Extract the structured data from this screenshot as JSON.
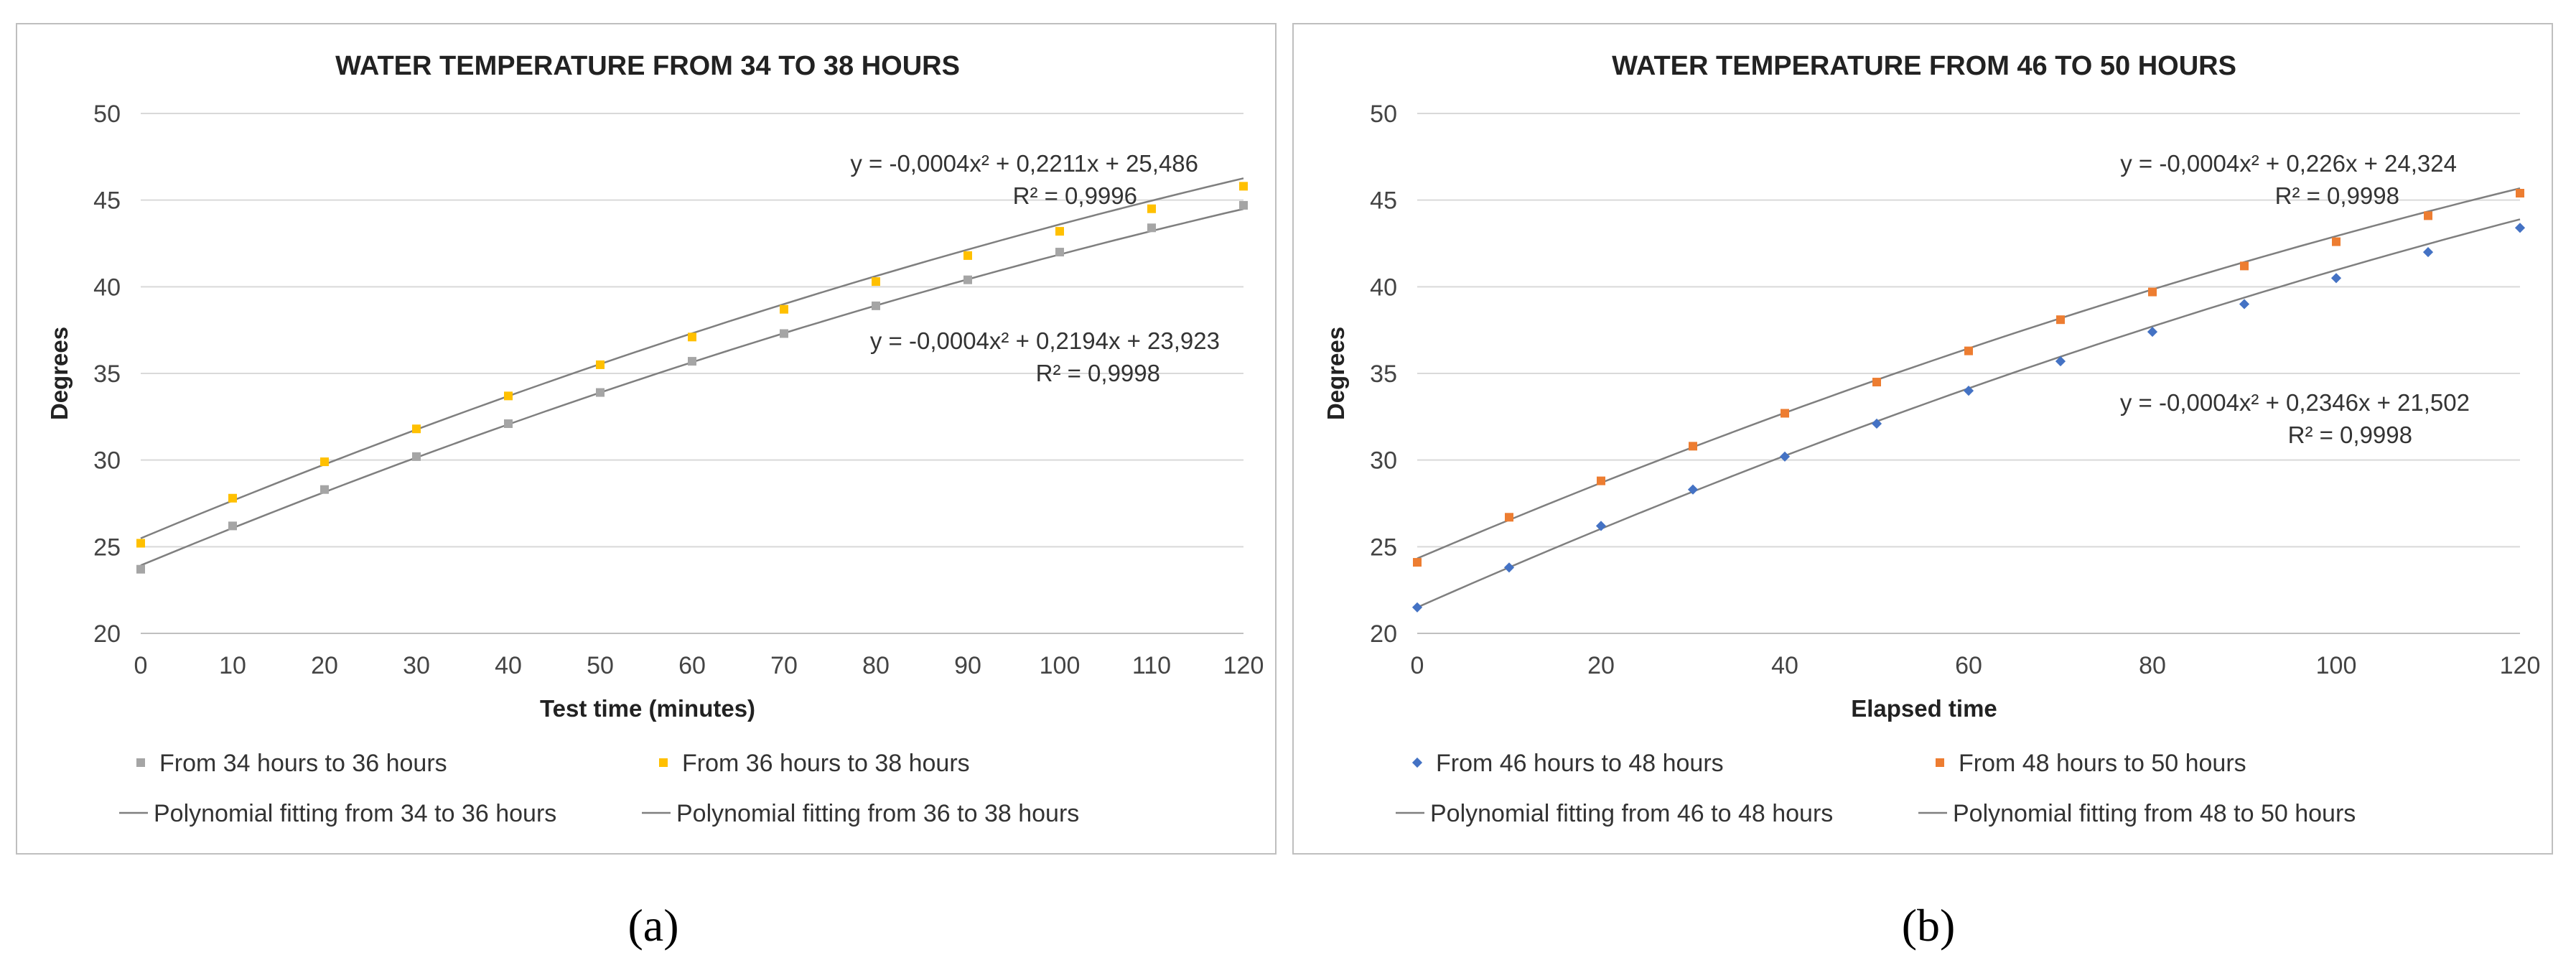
{
  "chart_data": [
    {
      "type": "scatter",
      "title": "WATER TEMPERATURE FROM 34 TO 38 HOURS",
      "xlabel": "Test time (minutes)",
      "ylabel": "Degrees",
      "xlim": [
        0,
        120
      ],
      "ylim": [
        20,
        50
      ],
      "xticks": [
        0,
        10,
        20,
        30,
        40,
        50,
        60,
        70,
        80,
        90,
        100,
        110,
        120
      ],
      "yticks": [
        20,
        25,
        30,
        35,
        40,
        45,
        50
      ],
      "grid": "horizontal",
      "legend_position": "bottom",
      "x": [
        0,
        10,
        20,
        30,
        40,
        50,
        60,
        70,
        80,
        90,
        100,
        110,
        120
      ],
      "series": [
        {
          "name": "From 34 hours to 36 hours",
          "color": "#a5a5a5",
          "marker": "square",
          "values": [
            23.7,
            26.2,
            28.3,
            30.2,
            32.1,
            33.9,
            35.7,
            37.3,
            38.9,
            40.4,
            42.0,
            43.4,
            44.7
          ]
        },
        {
          "name": "From 36 hours to 38 hours",
          "color": "#ffc000",
          "marker": "square",
          "values": [
            25.2,
            27.8,
            29.9,
            31.8,
            33.7,
            35.5,
            37.1,
            38.7,
            40.3,
            41.8,
            43.2,
            44.5,
            45.8
          ]
        }
      ],
      "fits": [
        {
          "name": "Polynomial fitting from 34 to 36 hours",
          "color": "#7f7f7f",
          "coefficients": [
            -0.0004,
            0.2194,
            23.923
          ],
          "equation": "y = -0,0004x² + 0,2194x + 23,923",
          "r2": "R² = 0,9998"
        },
        {
          "name": "Polynomial fitting from 36 to 38 hours",
          "color": "#7f7f7f",
          "coefficients": [
            -0.0004,
            0.2211,
            25.486
          ],
          "equation": "y = -0,0004x² + 0,2211x + 25,486",
          "r2": "R² = 0,9996"
        }
      ]
    },
    {
      "type": "scatter",
      "title": "WATER TEMPERATURE FROM 46 TO 50 HOURS",
      "xlabel": "Elapsed time",
      "ylabel": "Degrees",
      "xlim": [
        0,
        120
      ],
      "ylim": [
        20,
        50
      ],
      "xticks": [
        0,
        20,
        40,
        60,
        80,
        100,
        120
      ],
      "yticks": [
        20,
        25,
        30,
        35,
        40,
        45,
        50
      ],
      "grid": "horizontal",
      "legend_position": "bottom",
      "x": [
        0,
        10,
        20,
        30,
        40,
        50,
        60,
        70,
        80,
        90,
        100,
        110,
        120
      ],
      "series": [
        {
          "name": "From 46 hours to 48 hours",
          "color": "#4472c4",
          "marker": "diamond",
          "values": [
            21.5,
            23.8,
            26.2,
            28.3,
            30.2,
            32.1,
            34.0,
            35.7,
            37.4,
            39.0,
            40.5,
            42.0,
            43.4
          ]
        },
        {
          "name": "From 48 hours to 50 hours",
          "color": "#ed7d31",
          "marker": "square",
          "values": [
            24.1,
            26.7,
            28.8,
            30.8,
            32.7,
            34.5,
            36.3,
            38.1,
            39.7,
            41.2,
            42.6,
            44.1,
            45.4
          ]
        }
      ],
      "fits": [
        {
          "name": "Polynomial fitting from 46 to 48 hours",
          "color": "#7f7f7f",
          "coefficients": [
            -0.0004,
            0.2346,
            21.502
          ],
          "equation": "y = -0,0004x² + 0,2346x + 21,502",
          "r2": "R² = 0,9998"
        },
        {
          "name": "Polynomial fitting from 48 to 50 hours",
          "color": "#7f7f7f",
          "coefficients": [
            -0.0004,
            0.226,
            24.324
          ],
          "equation": "y = -0,0004x² + 0,226x + 24,324",
          "r2": "R² = 0,9998"
        }
      ]
    }
  ],
  "captions": [
    "(a)",
    "(b)"
  ]
}
